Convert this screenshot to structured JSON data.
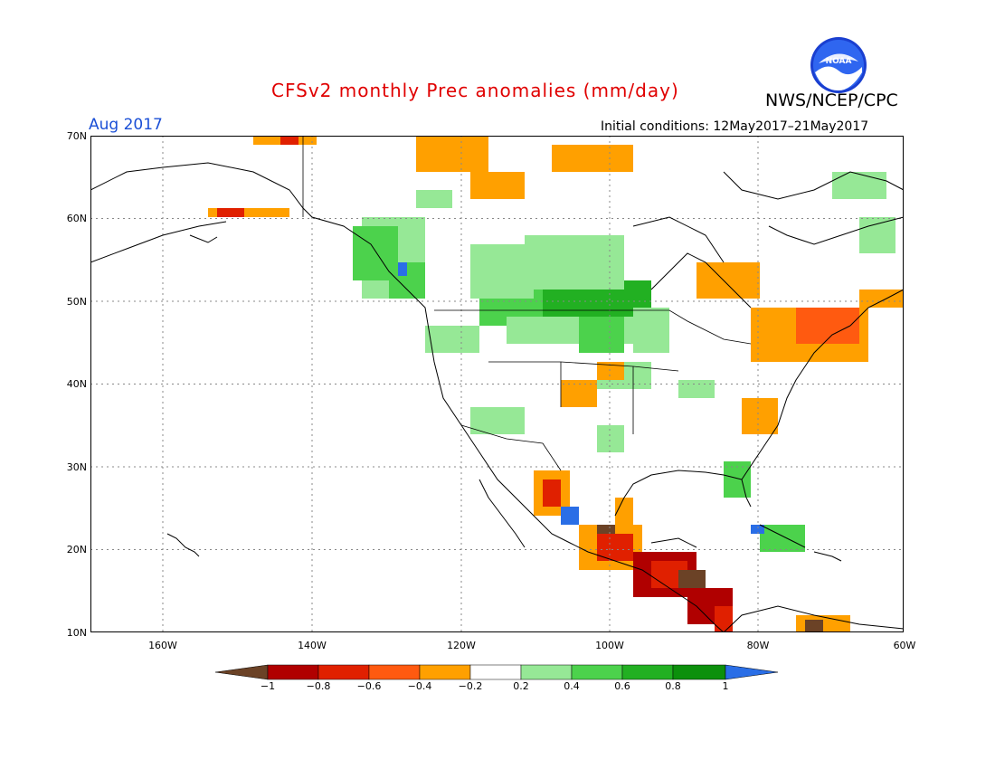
{
  "header": {
    "title": "CFSv2 monthly Prec anomalies (mm/day)",
    "agency": "NWS/NCEP/CPC",
    "logo_text": "NOAA",
    "month": "Aug 2017",
    "initial_conditions": "Initial conditions: 12May2017–21May2017"
  },
  "axes": {
    "lat_labels": [
      "70N",
      "60N",
      "50N",
      "40N",
      "30N",
      "20N",
      "10N"
    ],
    "lon_labels": [
      "160W",
      "140W",
      "120W",
      "100W",
      "80W",
      "60W"
    ]
  },
  "colorbar": {
    "labels": [
      "−1",
      "−0.8",
      "−0.6",
      "−0.4",
      "−0.2",
      "0.2",
      "0.4",
      "0.6",
      "0.8",
      "1"
    ],
    "colors": [
      "#6b4226",
      "#b00000",
      "#e02000",
      "#ff5a10",
      "#ffa000",
      "#ffffff",
      "#96e896",
      "#4cd24c",
      "#22b022",
      "#0c900c",
      "#2a6ee6"
    ]
  }
}
